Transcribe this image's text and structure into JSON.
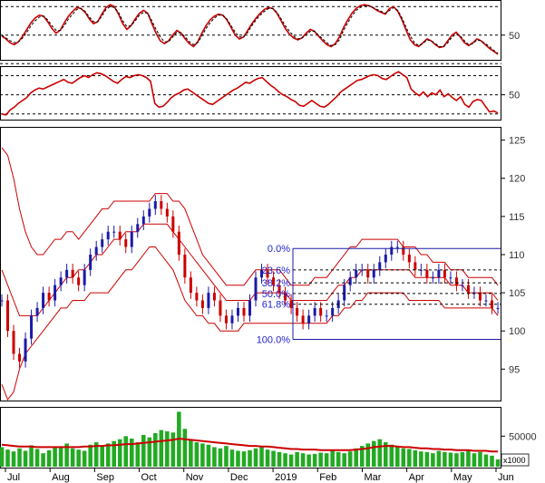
{
  "chart_data": [
    {
      "type": "line",
      "panel": "oscillator-1",
      "y_ticks": [
        50
      ],
      "ylim": [
        25,
        85
      ],
      "reference_levels": [
        80,
        50,
        20
      ],
      "series": [
        {
          "color": "#cc0000",
          "values": [
            49,
            46,
            42,
            40,
            43,
            49,
            56,
            63,
            68,
            71,
            70,
            64,
            57,
            52,
            55,
            63,
            70,
            75,
            79,
            78,
            74,
            67,
            62,
            64,
            72,
            79,
            82,
            80,
            72,
            62,
            56,
            60,
            67,
            73,
            76,
            73,
            62,
            52,
            44,
            41,
            44,
            50,
            55,
            52,
            46,
            41,
            38,
            43,
            52,
            60,
            66,
            70,
            72,
            71,
            66,
            58,
            50,
            46,
            48,
            55,
            62,
            68,
            73,
            77,
            79,
            78,
            73,
            65,
            57,
            51,
            47,
            45,
            47,
            52,
            56,
            54,
            49,
            44,
            40,
            38,
            41,
            48,
            58,
            66,
            73,
            78,
            81,
            82,
            81,
            79,
            76,
            74,
            72,
            78,
            80,
            75,
            66,
            55,
            45,
            40,
            38,
            42,
            46,
            44,
            40,
            37,
            38,
            44,
            50,
            53,
            48,
            42,
            39,
            42,
            46,
            44,
            40,
            36,
            33,
            30
          ]
        },
        {
          "color": "#000000",
          "dashed": true,
          "values": [
            50,
            47,
            44,
            42,
            43,
            47,
            53,
            60,
            65,
            69,
            70,
            66,
            60,
            55,
            55,
            60,
            67,
            72,
            77,
            78,
            75,
            69,
            64,
            64,
            70,
            77,
            80,
            79,
            74,
            65,
            59,
            60,
            65,
            71,
            74,
            73,
            65,
            56,
            48,
            43,
            43,
            48,
            53,
            52,
            48,
            43,
            40,
            42,
            49,
            57,
            63,
            68,
            71,
            71,
            67,
            60,
            53,
            48,
            48,
            53,
            60,
            66,
            71,
            75,
            78,
            78,
            74,
            67,
            60,
            54,
            49,
            46,
            47,
            50,
            54,
            54,
            50,
            46,
            42,
            39,
            40,
            45,
            55,
            63,
            70,
            76,
            79,
            81,
            81,
            79,
            77,
            75,
            73,
            76,
            79,
            76,
            68,
            58,
            49,
            42,
            39,
            41,
            45,
            44,
            41,
            38,
            38,
            42,
            48,
            51,
            49,
            44,
            40,
            41,
            45,
            44,
            41,
            38,
            34,
            31
          ]
        }
      ]
    },
    {
      "type": "line",
      "panel": "oscillator-2",
      "y_ticks": [
        50
      ],
      "ylim": [
        25,
        78
      ],
      "reference_levels": [
        70,
        50,
        30
      ],
      "series": [
        {
          "color": "#cc0000",
          "values": [
            30,
            29,
            34,
            37,
            41,
            44,
            47,
            52,
            55,
            57,
            56,
            58,
            60,
            62,
            64,
            66,
            63,
            62,
            65,
            68,
            70,
            68,
            71,
            73,
            72,
            70,
            67,
            64,
            62,
            66,
            69,
            68,
            70,
            71,
            70,
            68,
            64,
            41,
            37,
            38,
            42,
            47,
            50,
            52,
            55,
            56,
            53,
            50,
            47,
            44,
            41,
            40,
            43,
            46,
            49,
            52,
            55,
            57,
            60,
            63,
            62,
            65,
            67,
            68,
            64,
            60,
            57,
            53,
            50,
            48,
            45,
            43,
            39,
            38,
            41,
            44,
            41,
            38,
            37,
            40,
            44,
            48,
            53,
            56,
            59,
            62,
            65,
            66,
            68,
            70,
            71,
            70,
            67,
            66,
            69,
            72,
            74,
            71,
            68,
            56,
            52,
            49,
            53,
            48,
            52,
            50,
            55,
            48,
            51,
            47,
            44,
            48,
            40,
            37,
            43,
            45,
            44,
            38,
            32,
            33,
            31
          ]
        }
      ]
    },
    {
      "type": "candlestick",
      "panel": "price",
      "y_ticks": [
        95,
        100,
        105,
        110,
        115,
        120,
        125
      ],
      "ylim": [
        91,
        126.5
      ],
      "x_labels": [
        "Jul",
        "Aug",
        "Sep",
        "Oct",
        "Nov",
        "Dec",
        "2019",
        "Feb",
        "Mar",
        "Apr",
        "May",
        "Jun"
      ],
      "close": [
        104,
        100,
        97,
        96,
        99,
        102,
        103,
        105,
        104,
        106,
        107,
        108,
        107,
        106,
        108,
        110,
        111,
        112,
        113,
        113,
        112,
        111,
        113,
        114,
        115,
        116,
        117,
        116,
        115,
        113,
        110,
        107,
        105,
        104,
        103,
        105,
        104,
        102,
        101,
        102,
        103,
        102,
        104,
        107,
        108,
        107,
        106,
        105,
        104,
        103,
        102,
        101,
        102,
        103,
        102,
        102,
        103,
        104,
        106,
        107,
        108,
        108,
        107,
        108,
        109,
        110,
        111,
        111,
        110,
        109,
        108,
        108,
        107,
        107,
        108,
        107,
        107,
        106,
        106,
        105,
        105,
        104,
        104,
        103,
        103
      ],
      "bollinger": {
        "upper": [
          124,
          123,
          120,
          116,
          113,
          111,
          110,
          110,
          111,
          112,
          112,
          113,
          113,
          112,
          113,
          114,
          115,
          116,
          116,
          117,
          117,
          117,
          117,
          117,
          117,
          117,
          118,
          118,
          118,
          117,
          117,
          116,
          114,
          112,
          110,
          109,
          108,
          107,
          106,
          106,
          106,
          106,
          107,
          108,
          108,
          108,
          108,
          108,
          107,
          106,
          106,
          106,
          106,
          107,
          107,
          107,
          108,
          109,
          110,
          111,
          111,
          112,
          112,
          112,
          112,
          112,
          112,
          112,
          111,
          111,
          111,
          110,
          110,
          109,
          109,
          109,
          108,
          108,
          108,
          107,
          107,
          107,
          107,
          107,
          106
        ],
        "middle": [
          108,
          106,
          104,
          102,
          102,
          102,
          102,
          103,
          104,
          105,
          106,
          107,
          107,
          108,
          108,
          109,
          110,
          110,
          111,
          112,
          112,
          113,
          113,
          113,
          114,
          114,
          114,
          114,
          114,
          113,
          112,
          111,
          110,
          109,
          108,
          107,
          106,
          105,
          104,
          104,
          104,
          104,
          104,
          105,
          105,
          105,
          105,
          105,
          105,
          104,
          104,
          104,
          104,
          104,
          104,
          104,
          105,
          106,
          106,
          107,
          107,
          108,
          108,
          108,
          108,
          108,
          108,
          108,
          108,
          108,
          107,
          107,
          107,
          107,
          107,
          107,
          106,
          106,
          106,
          105,
          105,
          105,
          105,
          105,
          104
        ],
        "lower": [
          93,
          91,
          92,
          95,
          97,
          98,
          99,
          100,
          101,
          102,
          103,
          103,
          104,
          104,
          104,
          105,
          105,
          105,
          105,
          106,
          107,
          108,
          108,
          109,
          110,
          111,
          111,
          110,
          109,
          108,
          106,
          104,
          103,
          102,
          102,
          101,
          101,
          100,
          100,
          100,
          100,
          101,
          101,
          101,
          101,
          101,
          101,
          101,
          101,
          101,
          101,
          101,
          101,
          101,
          101,
          101,
          102,
          102,
          103,
          103,
          104,
          104,
          105,
          105,
          105,
          105,
          105,
          105,
          105,
          104,
          104,
          104,
          104,
          104,
          104,
          103,
          103,
          103,
          103,
          103,
          103,
          103,
          103,
          103,
          102
        ]
      },
      "fibonacci": [
        {
          "label": "0.0%",
          "price": 110.8
        },
        {
          "label": "23.6%",
          "price": 108.0
        },
        {
          "label": "38.2%",
          "price": 106.3
        },
        {
          "label": "50.0%",
          "price": 104.9
        },
        {
          "label": "61.8%",
          "price": 103.5
        },
        {
          "label": "100.0%",
          "price": 98.9
        }
      ]
    },
    {
      "type": "bar",
      "panel": "volume",
      "y_ticks": [
        50000
      ],
      "ylim": [
        0,
        95000
      ],
      "unit_label": "x1000",
      "values": [
        32000,
        28000,
        25000,
        30000,
        26000,
        35000,
        29000,
        22000,
        27000,
        31000,
        33000,
        38000,
        30000,
        28000,
        26000,
        36000,
        40000,
        35000,
        38000,
        42000,
        45000,
        50000,
        46000,
        40000,
        52000,
        48000,
        55000,
        60000,
        58000,
        56000,
        90000,
        62000,
        45000,
        40000,
        38000,
        36000,
        32000,
        30000,
        34000,
        28000,
        26000,
        25000,
        27000,
        30000,
        32000,
        28000,
        26000,
        24000,
        22000,
        20000,
        24000,
        22000,
        20000,
        21000,
        23000,
        22000,
        26000,
        24000,
        22000,
        25000,
        30000,
        34000,
        38000,
        42000,
        45000,
        40000,
        36000,
        32000,
        30000,
        29000,
        27000,
        25000,
        24000,
        22000,
        26000,
        24000,
        23000,
        22000,
        24000,
        26000,
        22000,
        24000,
        20000,
        18000,
        12000
      ],
      "moving_average": [
        36000,
        35000,
        34000,
        33000,
        33000,
        33000,
        32000,
        32000,
        32000,
        32000,
        32000,
        32000,
        32000,
        32000,
        33000,
        33000,
        34000,
        34000,
        35000,
        35000,
        36000,
        37000,
        37000,
        38000,
        39000,
        40000,
        41000,
        42000,
        43000,
        44000,
        46000,
        45000,
        44000,
        43000,
        42000,
        41000,
        40000,
        39000,
        38000,
        37000,
        36000,
        35000,
        34000,
        34000,
        33000,
        33000,
        32000,
        31000,
        30000,
        29000,
        29000,
        28000,
        28000,
        28000,
        27000,
        27000,
        27000,
        27000,
        27000,
        27000,
        28000,
        29000,
        30000,
        32000,
        33000,
        34000,
        34000,
        33000,
        32000,
        32000,
        31000,
        30000,
        30000,
        29000,
        29000,
        28000,
        28000,
        27000,
        27000,
        27000,
        26000,
        26000,
        26000,
        25000,
        25000
      ]
    }
  ]
}
